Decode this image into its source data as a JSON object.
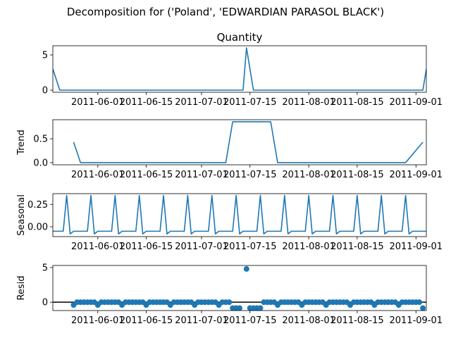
{
  "figure": {
    "suptitle": "Decomposition for ('Poland', 'EDWARDIAN PARASOL BLACK')"
  },
  "chart_data": [
    {
      "type": "line",
      "panel": "observed",
      "title": "Quantity",
      "ylabel": "",
      "line_color": "#1f77b4",
      "x_range": [
        "2011-05-19",
        "2011-09-04"
      ],
      "ylim": [
        -0.3,
        6.3
      ],
      "yticks": [
        0,
        5
      ],
      "xticks": [
        "2011-06-01",
        "2011-06-15",
        "2011-07-01",
        "2011-07-15",
        "2011-08-01",
        "2011-08-15",
        "2011-09-01"
      ],
      "points": [
        {
          "x": "2011-05-19",
          "y": 3
        },
        {
          "x": "2011-05-21",
          "y": 0
        },
        {
          "x": "2011-07-13",
          "y": 0
        },
        {
          "x": "2011-07-14",
          "y": 6
        },
        {
          "x": "2011-07-16",
          "y": 0
        },
        {
          "x": "2011-09-03",
          "y": 0
        },
        {
          "x": "2011-09-04",
          "y": 3
        }
      ]
    },
    {
      "type": "line",
      "panel": "trend",
      "title": "",
      "ylabel": "Trend",
      "line_color": "#1f77b4",
      "x_range": [
        "2011-05-19",
        "2011-09-04"
      ],
      "ylim": [
        -0.045,
        0.9
      ],
      "yticks": [
        0.0,
        0.5
      ],
      "xticks": [
        "2011-06-01",
        "2011-06-15",
        "2011-07-01",
        "2011-07-15",
        "2011-08-01",
        "2011-08-15",
        "2011-09-01"
      ],
      "points": [
        {
          "x": "2011-05-25",
          "y": 0.43
        },
        {
          "x": "2011-05-27",
          "y": 0
        },
        {
          "x": "2011-07-08",
          "y": 0
        },
        {
          "x": "2011-07-10",
          "y": 0.857
        },
        {
          "x": "2011-07-21",
          "y": 0.857
        },
        {
          "x": "2011-07-23",
          "y": 0
        },
        {
          "x": "2011-08-29",
          "y": 0
        },
        {
          "x": "2011-09-03",
          "y": 0.43
        }
      ]
    },
    {
      "type": "line",
      "panel": "seasonal",
      "title": "",
      "ylabel": "Seasonal",
      "line_color": "#1f77b4",
      "x_range": [
        "2011-05-19",
        "2011-09-04"
      ],
      "ylim": [
        -0.11,
        0.37
      ],
      "yticks": [
        0.0,
        0.25
      ],
      "xticks": [
        "2011-06-01",
        "2011-06-15",
        "2011-07-01",
        "2011-07-15",
        "2011-08-01",
        "2011-08-15",
        "2011-09-01"
      ],
      "period_days": 7,
      "first_peak": "2011-05-23",
      "pattern": [
        0.35,
        -0.08,
        -0.05,
        -0.05,
        -0.05,
        -0.05,
        -0.05
      ]
    },
    {
      "type": "scatter",
      "panel": "resid",
      "title": "",
      "ylabel": "Resid",
      "marker_color": "#1f77b4",
      "x_range": [
        "2011-05-19",
        "2011-09-04"
      ],
      "ylim": [
        -1.2,
        5.3
      ],
      "yticks": [
        0,
        5
      ],
      "xticks": [
        "2011-06-01",
        "2011-06-15",
        "2011-07-01",
        "2011-07-15",
        "2011-08-01",
        "2011-08-15",
        "2011-09-01"
      ],
      "zero_line": true,
      "points": [
        {
          "x": "2011-05-25",
          "y": -0.4
        },
        {
          "x": "2011-05-26",
          "y": 0
        },
        {
          "x": "2011-05-27",
          "y": 0
        },
        {
          "x": "2011-05-28",
          "y": 0
        },
        {
          "x": "2011-05-29",
          "y": 0
        },
        {
          "x": "2011-05-30",
          "y": 0
        },
        {
          "x": "2011-05-31",
          "y": 0
        },
        {
          "x": "2011-06-01",
          "y": -0.4
        },
        {
          "x": "2011-06-02",
          "y": 0
        },
        {
          "x": "2011-06-03",
          "y": 0
        },
        {
          "x": "2011-06-04",
          "y": 0
        },
        {
          "x": "2011-06-05",
          "y": 0
        },
        {
          "x": "2011-06-06",
          "y": 0
        },
        {
          "x": "2011-06-07",
          "y": 0
        },
        {
          "x": "2011-06-08",
          "y": -0.4
        },
        {
          "x": "2011-06-09",
          "y": 0
        },
        {
          "x": "2011-06-10",
          "y": 0
        },
        {
          "x": "2011-06-11",
          "y": 0
        },
        {
          "x": "2011-06-12",
          "y": 0
        },
        {
          "x": "2011-06-13",
          "y": 0
        },
        {
          "x": "2011-06-14",
          "y": 0
        },
        {
          "x": "2011-06-15",
          "y": -0.4
        },
        {
          "x": "2011-06-16",
          "y": 0
        },
        {
          "x": "2011-06-17",
          "y": 0
        },
        {
          "x": "2011-06-18",
          "y": 0
        },
        {
          "x": "2011-06-19",
          "y": 0
        },
        {
          "x": "2011-06-20",
          "y": 0
        },
        {
          "x": "2011-06-21",
          "y": 0
        },
        {
          "x": "2011-06-22",
          "y": -0.4
        },
        {
          "x": "2011-06-23",
          "y": 0
        },
        {
          "x": "2011-06-24",
          "y": 0
        },
        {
          "x": "2011-06-25",
          "y": 0
        },
        {
          "x": "2011-06-26",
          "y": 0
        },
        {
          "x": "2011-06-27",
          "y": 0
        },
        {
          "x": "2011-06-28",
          "y": 0
        },
        {
          "x": "2011-06-29",
          "y": -0.4
        },
        {
          "x": "2011-06-30",
          "y": 0
        },
        {
          "x": "2011-07-01",
          "y": 0
        },
        {
          "x": "2011-07-02",
          "y": 0
        },
        {
          "x": "2011-07-03",
          "y": 0
        },
        {
          "x": "2011-07-04",
          "y": 0
        },
        {
          "x": "2011-07-05",
          "y": 0
        },
        {
          "x": "2011-07-06",
          "y": -0.4
        },
        {
          "x": "2011-07-07",
          "y": 0
        },
        {
          "x": "2011-07-08",
          "y": 0
        },
        {
          "x": "2011-07-09",
          "y": 0
        },
        {
          "x": "2011-07-10",
          "y": -0.85
        },
        {
          "x": "2011-07-11",
          "y": -0.85
        },
        {
          "x": "2011-07-12",
          "y": -0.85
        },
        {
          "x": "2011-07-14",
          "y": 4.8
        },
        {
          "x": "2011-07-15",
          "y": -0.85
        },
        {
          "x": "2011-07-16",
          "y": -0.85
        },
        {
          "x": "2011-07-17",
          "y": -0.85
        },
        {
          "x": "2011-07-18",
          "y": -0.85
        },
        {
          "x": "2011-07-19",
          "y": 0
        },
        {
          "x": "2011-07-20",
          "y": 0
        },
        {
          "x": "2011-07-21",
          "y": 0
        },
        {
          "x": "2011-07-22",
          "y": 0
        },
        {
          "x": "2011-07-23",
          "y": -0.4
        },
        {
          "x": "2011-07-24",
          "y": 0
        },
        {
          "x": "2011-07-25",
          "y": 0
        },
        {
          "x": "2011-07-26",
          "y": 0
        },
        {
          "x": "2011-07-27",
          "y": 0
        },
        {
          "x": "2011-07-28",
          "y": 0
        },
        {
          "x": "2011-07-29",
          "y": 0
        },
        {
          "x": "2011-07-30",
          "y": -0.4
        },
        {
          "x": "2011-07-31",
          "y": 0
        },
        {
          "x": "2011-08-01",
          "y": 0
        },
        {
          "x": "2011-08-02",
          "y": 0
        },
        {
          "x": "2011-08-03",
          "y": 0
        },
        {
          "x": "2011-08-04",
          "y": 0
        },
        {
          "x": "2011-08-05",
          "y": 0
        },
        {
          "x": "2011-08-06",
          "y": -0.4
        },
        {
          "x": "2011-08-07",
          "y": 0
        },
        {
          "x": "2011-08-08",
          "y": 0
        },
        {
          "x": "2011-08-09",
          "y": 0
        },
        {
          "x": "2011-08-10",
          "y": 0
        },
        {
          "x": "2011-08-11",
          "y": 0
        },
        {
          "x": "2011-08-12",
          "y": 0
        },
        {
          "x": "2011-08-13",
          "y": -0.4
        },
        {
          "x": "2011-08-14",
          "y": 0
        },
        {
          "x": "2011-08-15",
          "y": 0
        },
        {
          "x": "2011-08-16",
          "y": 0
        },
        {
          "x": "2011-08-17",
          "y": 0
        },
        {
          "x": "2011-08-18",
          "y": 0
        },
        {
          "x": "2011-08-19",
          "y": 0
        },
        {
          "x": "2011-08-20",
          "y": -0.4
        },
        {
          "x": "2011-08-21",
          "y": 0
        },
        {
          "x": "2011-08-22",
          "y": 0
        },
        {
          "x": "2011-08-23",
          "y": 0
        },
        {
          "x": "2011-08-24",
          "y": 0
        },
        {
          "x": "2011-08-25",
          "y": 0
        },
        {
          "x": "2011-08-26",
          "y": 0
        },
        {
          "x": "2011-08-27",
          "y": -0.4
        },
        {
          "x": "2011-08-28",
          "y": 0
        },
        {
          "x": "2011-08-29",
          "y": 0
        },
        {
          "x": "2011-08-30",
          "y": 0
        },
        {
          "x": "2011-08-31",
          "y": 0
        },
        {
          "x": "2011-09-01",
          "y": 0
        },
        {
          "x": "2011-09-02",
          "y": 0
        },
        {
          "x": "2011-09-03",
          "y": -0.85
        }
      ]
    }
  ]
}
